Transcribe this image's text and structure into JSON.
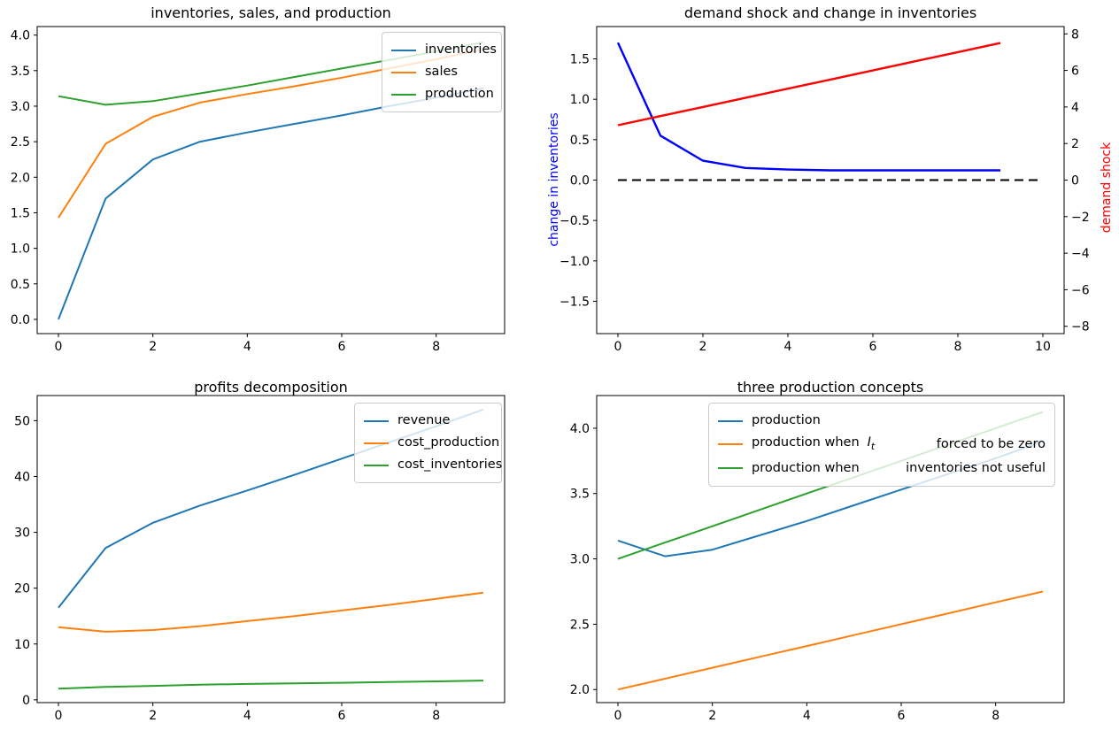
{
  "figure": {
    "background": "#ffffff",
    "text_color": "#000000"
  },
  "palette": {
    "blue": "#1f77b4",
    "orange": "#ff7f0e",
    "green": "#2ca02c",
    "pure_blue": "#0000ff",
    "pure_red": "#ff0000",
    "black": "#000000"
  },
  "chart_data": [
    {
      "type": "line",
      "title": "inventories, sales, and production",
      "xlabel": "",
      "ylabel": "",
      "xlim": [
        -0.45,
        9.45
      ],
      "ylim": [
        -0.2,
        4.12
      ],
      "grid": false,
      "xticks": {
        "values": [
          0,
          2,
          4,
          6,
          8
        ],
        "labels": [
          "0",
          "2",
          "4",
          "6",
          "8"
        ]
      },
      "yticks": {
        "values": [
          0.0,
          0.5,
          1.0,
          1.5,
          2.0,
          2.5,
          3.0,
          3.5,
          4.0
        ],
        "labels": [
          "0.0",
          "0.5",
          "1.0",
          "1.5",
          "2.0",
          "2.5",
          "3.0",
          "3.5",
          "4.0"
        ]
      },
      "x": [
        0,
        1,
        2,
        3,
        4,
        5,
        6,
        7,
        8,
        9
      ],
      "series": [
        {
          "name": "inventories",
          "color": "#1f77b4",
          "width": 2,
          "values": [
            0.0,
            1.7,
            2.25,
            2.5,
            2.63,
            2.75,
            2.87,
            3.0,
            3.12,
            3.25
          ]
        },
        {
          "name": "sales",
          "color": "#ff7f0e",
          "width": 2,
          "values": [
            1.43,
            2.47,
            2.85,
            3.05,
            3.17,
            3.28,
            3.4,
            3.53,
            3.66,
            3.8
          ]
        },
        {
          "name": "production",
          "color": "#2ca02c",
          "width": 2,
          "values": [
            3.14,
            3.02,
            3.07,
            3.18,
            3.29,
            3.41,
            3.53,
            3.65,
            3.77,
            3.9
          ]
        }
      ],
      "legend": {
        "position": "upper right",
        "items": [
          {
            "label": "inventories"
          },
          {
            "label": "sales"
          },
          {
            "label": "production"
          }
        ]
      }
    },
    {
      "type": "line",
      "title": "demand shock and change in inventories",
      "xlabel": "",
      "xlim": [
        -0.5,
        10.5
      ],
      "ylim": [
        -1.9,
        1.9
      ],
      "grid": false,
      "ylabel_left": {
        "text": "change in inventories",
        "color": "#0000ff"
      },
      "xticks": {
        "values": [
          0,
          2,
          4,
          6,
          8,
          10
        ],
        "labels": [
          "0",
          "2",
          "4",
          "6",
          "8",
          "10"
        ]
      },
      "yticks": {
        "values": [
          -1.5,
          -1.0,
          -0.5,
          0.0,
          0.5,
          1.0,
          1.5
        ],
        "labels": [
          "−1.5",
          "−1.0",
          "−0.5",
          "0.0",
          "0.5",
          "1.0",
          "1.5"
        ]
      },
      "right_axis": {
        "ylim": [
          -8.4,
          8.4
        ],
        "ylabel": {
          "text": "demand shock",
          "color": "#ff0000"
        },
        "yticks": {
          "values": [
            -8,
            -6,
            -4,
            -2,
            0,
            2,
            4,
            6,
            8
          ],
          "labels": [
            "−8",
            "−6",
            "−4",
            "−2",
            "0",
            "2",
            "4",
            "6",
            "8"
          ]
        }
      },
      "x": [
        0,
        1,
        2,
        3,
        4,
        5,
        6,
        7,
        8,
        9
      ],
      "series": [
        {
          "name": "change in inventories",
          "color": "#0000ff",
          "axis": "left",
          "width": 2.4,
          "values": [
            1.7,
            0.55,
            0.24,
            0.15,
            0.13,
            0.12,
            0.12,
            0.12,
            0.12,
            0.12
          ]
        },
        {
          "name": "demand shock",
          "color": "#ff0000",
          "axis": "right",
          "width": 2.4,
          "values": [
            3.0,
            3.5,
            4.0,
            4.5,
            5.0,
            5.5,
            6.0,
            6.5,
            7.0,
            7.5
          ]
        },
        {
          "name": "zero line",
          "color": "#000000",
          "axis": "left",
          "width": 2,
          "style": "dashed",
          "x": [
            0,
            10
          ],
          "values": [
            0,
            0
          ]
        }
      ],
      "legend": null
    },
    {
      "type": "line",
      "title": "profits decomposition",
      "xlabel": "",
      "ylabel": "",
      "xlim": [
        -0.45,
        9.45
      ],
      "ylim": [
        -0.5,
        54.5
      ],
      "grid": false,
      "xticks": {
        "values": [
          0,
          2,
          4,
          6,
          8
        ],
        "labels": [
          "0",
          "2",
          "4",
          "6",
          "8"
        ]
      },
      "yticks": {
        "values": [
          0,
          10,
          20,
          30,
          40,
          50
        ],
        "labels": [
          "0",
          "10",
          "20",
          "30",
          "40",
          "50"
        ]
      },
      "x": [
        0,
        1,
        2,
        3,
        4,
        5,
        6,
        7,
        8,
        9
      ],
      "series": [
        {
          "name": "revenue",
          "color": "#1f77b4",
          "width": 2,
          "values": [
            16.5,
            27.2,
            31.7,
            34.8,
            37.5,
            40.3,
            43.2,
            46.1,
            49.0,
            52.0
          ]
        },
        {
          "name": "cost_production",
          "color": "#ff7f0e",
          "width": 2,
          "values": [
            13.0,
            12.2,
            12.5,
            13.2,
            14.1,
            15.0,
            16.0,
            17.0,
            18.1,
            19.2
          ]
        },
        {
          "name": "cost_inventories",
          "color": "#2ca02c",
          "width": 2,
          "values": [
            2.0,
            2.3,
            2.5,
            2.7,
            2.85,
            2.95,
            3.05,
            3.2,
            3.3,
            3.45
          ]
        }
      ],
      "legend": {
        "position": "upper right",
        "items": [
          {
            "label": "revenue"
          },
          {
            "label": "cost_production"
          },
          {
            "label": "cost_inventories"
          }
        ]
      }
    },
    {
      "type": "line",
      "title": "three production concepts",
      "xlabel": "",
      "ylabel": "",
      "xlim": [
        -0.45,
        9.45
      ],
      "ylim": [
        1.9,
        4.25
      ],
      "grid": false,
      "xticks": {
        "values": [
          0,
          2,
          4,
          6,
          8
        ],
        "labels": [
          "0",
          "2",
          "4",
          "6",
          "8"
        ]
      },
      "yticks": {
        "values": [
          2.0,
          2.5,
          3.0,
          3.5,
          4.0
        ],
        "labels": [
          "2.0",
          "2.5",
          "3.0",
          "3.5",
          "4.0"
        ]
      },
      "x": [
        0,
        1,
        2,
        3,
        4,
        5,
        6,
        7,
        8,
        9
      ],
      "series": [
        {
          "name": "production",
          "color": "#1f77b4",
          "width": 2,
          "values": [
            3.14,
            3.02,
            3.07,
            3.18,
            3.29,
            3.41,
            3.53,
            3.65,
            3.77,
            3.9
          ]
        },
        {
          "name": "production when I_t forced to be zero",
          "color": "#ff7f0e",
          "width": 2,
          "values": [
            2.0,
            2.083,
            2.167,
            2.25,
            2.333,
            2.417,
            2.5,
            2.583,
            2.667,
            2.75
          ]
        },
        {
          "name": "production when inventories not useful",
          "color": "#2ca02c",
          "width": 2,
          "values": [
            3.0,
            3.125,
            3.25,
            3.375,
            3.5,
            3.625,
            3.75,
            3.875,
            4.0,
            4.125
          ]
        }
      ],
      "legend": {
        "position": "upper center wide",
        "items": [
          {
            "label": "production"
          },
          {
            "label": "production when",
            "math": "I_t",
            "label2": "forced to be zero"
          },
          {
            "label": "production when",
            "label2": "inventories not useful"
          }
        ]
      }
    }
  ]
}
